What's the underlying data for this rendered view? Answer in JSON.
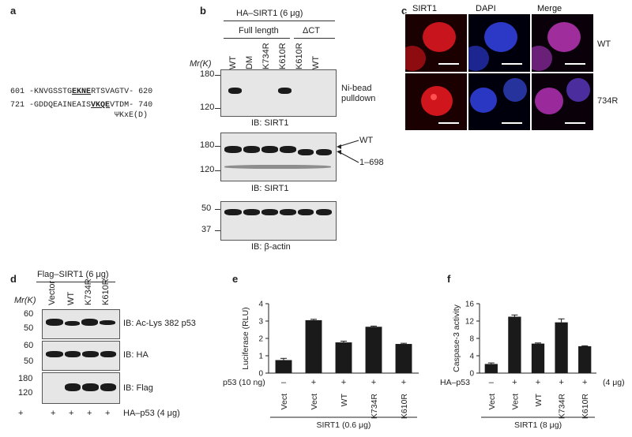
{
  "panels": {
    "a": "a",
    "b": "b",
    "c": "c",
    "d": "d",
    "e": "e",
    "f": "f"
  },
  "panel_a": {
    "line1_start": "601",
    "line1_pre": "-KNVGSSTG",
    "line1_motif": "EKNE",
    "line1_post": "RTSVAGTV-",
    "line1_end": "620",
    "line2_start": "721",
    "line2_pre": "-GDDQEAINEAIS",
    "line2_motif": "VKQE",
    "line2_post": "VTDM-",
    "line2_end": "740",
    "consensus": "ΨKxE(D)"
  },
  "panel_b": {
    "construct": "HA–SIRT1 (6 μg)",
    "group_full": "Full length",
    "group_dct": "ΔCT",
    "lanes": [
      "WT",
      "DM",
      "K734R",
      "K610R",
      "K610R",
      "WT"
    ],
    "mr_label": "Mr(K)",
    "blot1": {
      "ticks": [
        "180",
        "120"
      ],
      "side": "Ni-bead pulldown",
      "ib": "IB: SIRT1"
    },
    "blot2": {
      "ticks": [
        "180",
        "120"
      ],
      "side_wt": "WT",
      "side_trunc": "1–698",
      "ib": "IB: SIRT1"
    },
    "blot3": {
      "ticks": [
        "50",
        "37"
      ],
      "ib": "IB: β-actin"
    }
  },
  "panel_c": {
    "cols": [
      "SIRT1",
      "DAPI",
      "Merge"
    ],
    "rows": [
      "WT",
      "734R"
    ]
  },
  "panel_d": {
    "construct": "Flag–SIRT1 (6 μg)",
    "lanes": [
      "Vector",
      "WT",
      "K734R",
      "K610R"
    ],
    "mr_label": "Mr(K)",
    "blot1": {
      "ticks": [
        "60",
        "50"
      ],
      "ib": "IB: Ac-Lys 382 p53"
    },
    "blot2": {
      "ticks": [
        "60",
        "50"
      ],
      "ib": "IB: HA"
    },
    "blot3": {
      "ticks": [
        "180",
        "120"
      ],
      "ib": "IB: Flag"
    },
    "plus": [
      "+",
      "+",
      "+",
      "+"
    ],
    "bottom_label": "HA–p53 (4 μg)"
  },
  "chart_data": [
    {
      "type": "bar",
      "panel": "e",
      "categories": [
        "Vect",
        "Vect",
        "WT",
        "K734R",
        "K610R"
      ],
      "values": [
        0.75,
        3.05,
        1.77,
        2.67,
        1.68
      ],
      "errors": [
        0.1,
        0.05,
        0.07,
        0.04,
        0.04
      ],
      "ylabel": "Luciferase (RLU)",
      "ylim": [
        0,
        4
      ],
      "yticks": [
        "0",
        "1",
        "2",
        "3",
        "4"
      ],
      "treatment_label": "p53 (10 ng)",
      "treatment_signs": [
        "–",
        "+",
        "+",
        "+",
        "+"
      ],
      "group_label": "SIRT1 (0.6 μg)"
    },
    {
      "type": "bar",
      "panel": "f",
      "categories": [
        "Vect",
        "Vect",
        "WT",
        "K734R",
        "K610R"
      ],
      "values": [
        2.1,
        13.0,
        6.8,
        11.7,
        6.2
      ],
      "errors": [
        0.25,
        0.4,
        0.15,
        0.8,
        0.1
      ],
      "ylabel": "Caspase-3 activity",
      "ylim": [
        0,
        16
      ],
      "yticks": [
        "0",
        "4",
        "8",
        "12",
        "16"
      ],
      "treatment_label": "HA–p53",
      "treatment_signs": [
        "–",
        "+",
        "+",
        "+",
        "+"
      ],
      "treatment_amount": "(4 μg)",
      "group_label": "SIRT1 (8 μg)"
    }
  ]
}
